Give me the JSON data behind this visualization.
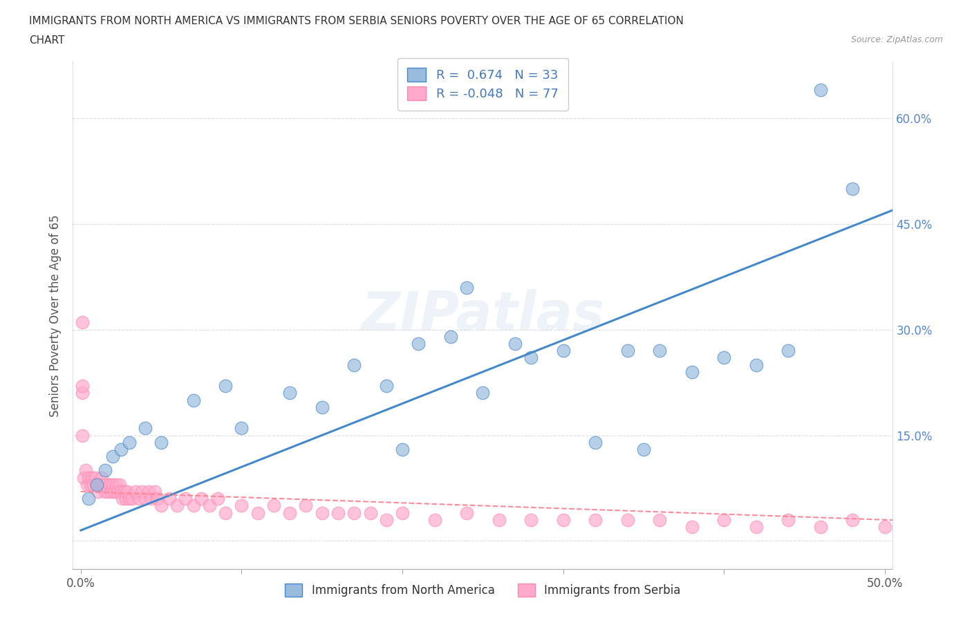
{
  "title_line1": "IMMIGRANTS FROM NORTH AMERICA VS IMMIGRANTS FROM SERBIA SENIORS POVERTY OVER THE AGE OF 65 CORRELATION",
  "title_line2": "CHART",
  "source": "Source: ZipAtlas.com",
  "ylabel": "Seniors Poverty Over the Age of 65",
  "watermark": "ZIPatlas",
  "xlim": [
    -0.005,
    0.505
  ],
  "ylim": [
    -0.04,
    0.68
  ],
  "blue_color": "#99BBDD",
  "blue_color_edge": "#6699CC",
  "pink_color": "#FFAACC",
  "pink_color_edge": "#FF88AA",
  "blue_line_color": "#4488CC",
  "pink_line_color": "#FF8899",
  "legend_blue_label": "R =  0.674   N = 33",
  "legend_pink_label": "R = -0.048   N = 77",
  "legend_bottom_blue": "Immigrants from North America",
  "legend_bottom_pink": "Immigrants from Serbia",
  "north_america_x": [
    0.005,
    0.01,
    0.015,
    0.02,
    0.025,
    0.03,
    0.04,
    0.05,
    0.07,
    0.09,
    0.1,
    0.13,
    0.15,
    0.17,
    0.19,
    0.21,
    0.23,
    0.25,
    0.27,
    0.3,
    0.32,
    0.34,
    0.36,
    0.38,
    0.4,
    0.42,
    0.44,
    0.24,
    0.28,
    0.2,
    0.35,
    0.46,
    0.48
  ],
  "north_america_y": [
    0.06,
    0.08,
    0.1,
    0.12,
    0.13,
    0.14,
    0.16,
    0.14,
    0.2,
    0.22,
    0.16,
    0.21,
    0.19,
    0.25,
    0.22,
    0.28,
    0.29,
    0.21,
    0.28,
    0.27,
    0.14,
    0.27,
    0.27,
    0.24,
    0.26,
    0.25,
    0.27,
    0.36,
    0.26,
    0.13,
    0.13,
    0.64,
    0.5
  ],
  "serbia_x": [
    0.002,
    0.003,
    0.004,
    0.005,
    0.006,
    0.007,
    0.008,
    0.009,
    0.01,
    0.011,
    0.012,
    0.013,
    0.014,
    0.015,
    0.016,
    0.017,
    0.018,
    0.019,
    0.02,
    0.021,
    0.022,
    0.023,
    0.024,
    0.025,
    0.026,
    0.027,
    0.028,
    0.029,
    0.03,
    0.032,
    0.034,
    0.036,
    0.038,
    0.04,
    0.042,
    0.044,
    0.046,
    0.048,
    0.05,
    0.055,
    0.06,
    0.065,
    0.07,
    0.075,
    0.08,
    0.085,
    0.09,
    0.1,
    0.11,
    0.12,
    0.13,
    0.14,
    0.15,
    0.16,
    0.17,
    0.18,
    0.19,
    0.2,
    0.22,
    0.24,
    0.26,
    0.28,
    0.3,
    0.32,
    0.34,
    0.36,
    0.38,
    0.4,
    0.42,
    0.44,
    0.46,
    0.48,
    0.5,
    0.001,
    0.001,
    0.001,
    0.001
  ],
  "serbia_y": [
    0.09,
    0.1,
    0.08,
    0.09,
    0.08,
    0.09,
    0.08,
    0.09,
    0.08,
    0.07,
    0.08,
    0.09,
    0.08,
    0.07,
    0.08,
    0.07,
    0.08,
    0.07,
    0.08,
    0.07,
    0.08,
    0.07,
    0.08,
    0.07,
    0.06,
    0.07,
    0.06,
    0.07,
    0.06,
    0.06,
    0.07,
    0.06,
    0.07,
    0.06,
    0.07,
    0.06,
    0.07,
    0.06,
    0.05,
    0.06,
    0.05,
    0.06,
    0.05,
    0.06,
    0.05,
    0.06,
    0.04,
    0.05,
    0.04,
    0.05,
    0.04,
    0.05,
    0.04,
    0.04,
    0.04,
    0.04,
    0.03,
    0.04,
    0.03,
    0.04,
    0.03,
    0.03,
    0.03,
    0.03,
    0.03,
    0.03,
    0.02,
    0.03,
    0.02,
    0.03,
    0.02,
    0.03,
    0.02,
    0.31,
    0.21,
    0.22,
    0.15
  ]
}
